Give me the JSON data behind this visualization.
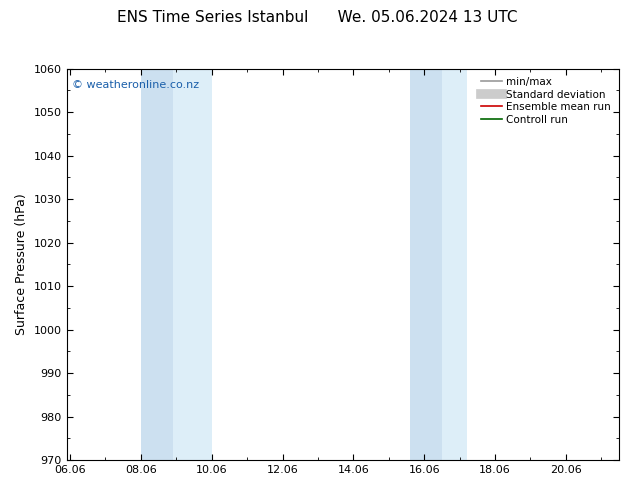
{
  "title": "ENS Time Series Istanbul      We. 05.06.2024 13 UTC",
  "ylabel": "Surface Pressure (hPa)",
  "ylim": [
    970,
    1060
  ],
  "yticks": [
    970,
    980,
    990,
    1000,
    1010,
    1020,
    1030,
    1040,
    1050,
    1060
  ],
  "xtick_labels": [
    "06.06",
    "08.06",
    "10.06",
    "12.06",
    "14.06",
    "16.06",
    "18.06",
    "20.06"
  ],
  "xtick_positions": [
    0,
    2,
    4,
    6,
    8,
    10,
    12,
    14
  ],
  "xlim": [
    -0.1,
    15.5
  ],
  "shaded_bands": [
    {
      "x_start": 2.0,
      "x_end": 2.9,
      "color": "#cce0f0"
    },
    {
      "x_start": 2.9,
      "x_end": 4.0,
      "color": "#ddeef8"
    },
    {
      "x_start": 9.6,
      "x_end": 10.5,
      "color": "#cce0f0"
    },
    {
      "x_start": 10.5,
      "x_end": 11.2,
      "color": "#ddeef8"
    }
  ],
  "watermark": "© weatheronline.co.nz",
  "watermark_color": "#1a5faa",
  "legend_items": [
    {
      "label": "min/max",
      "color": "#999999",
      "lw": 1.2
    },
    {
      "label": "Standard deviation",
      "color": "#cccccc",
      "lw": 7
    },
    {
      "label": "Ensemble mean run",
      "color": "#cc0000",
      "lw": 1.2
    },
    {
      "label": "Controll run",
      "color": "#006600",
      "lw": 1.2
    }
  ],
  "background_color": "#ffffff",
  "tick_fontsize": 8,
  "label_fontsize": 9,
  "title_fontsize": 11
}
